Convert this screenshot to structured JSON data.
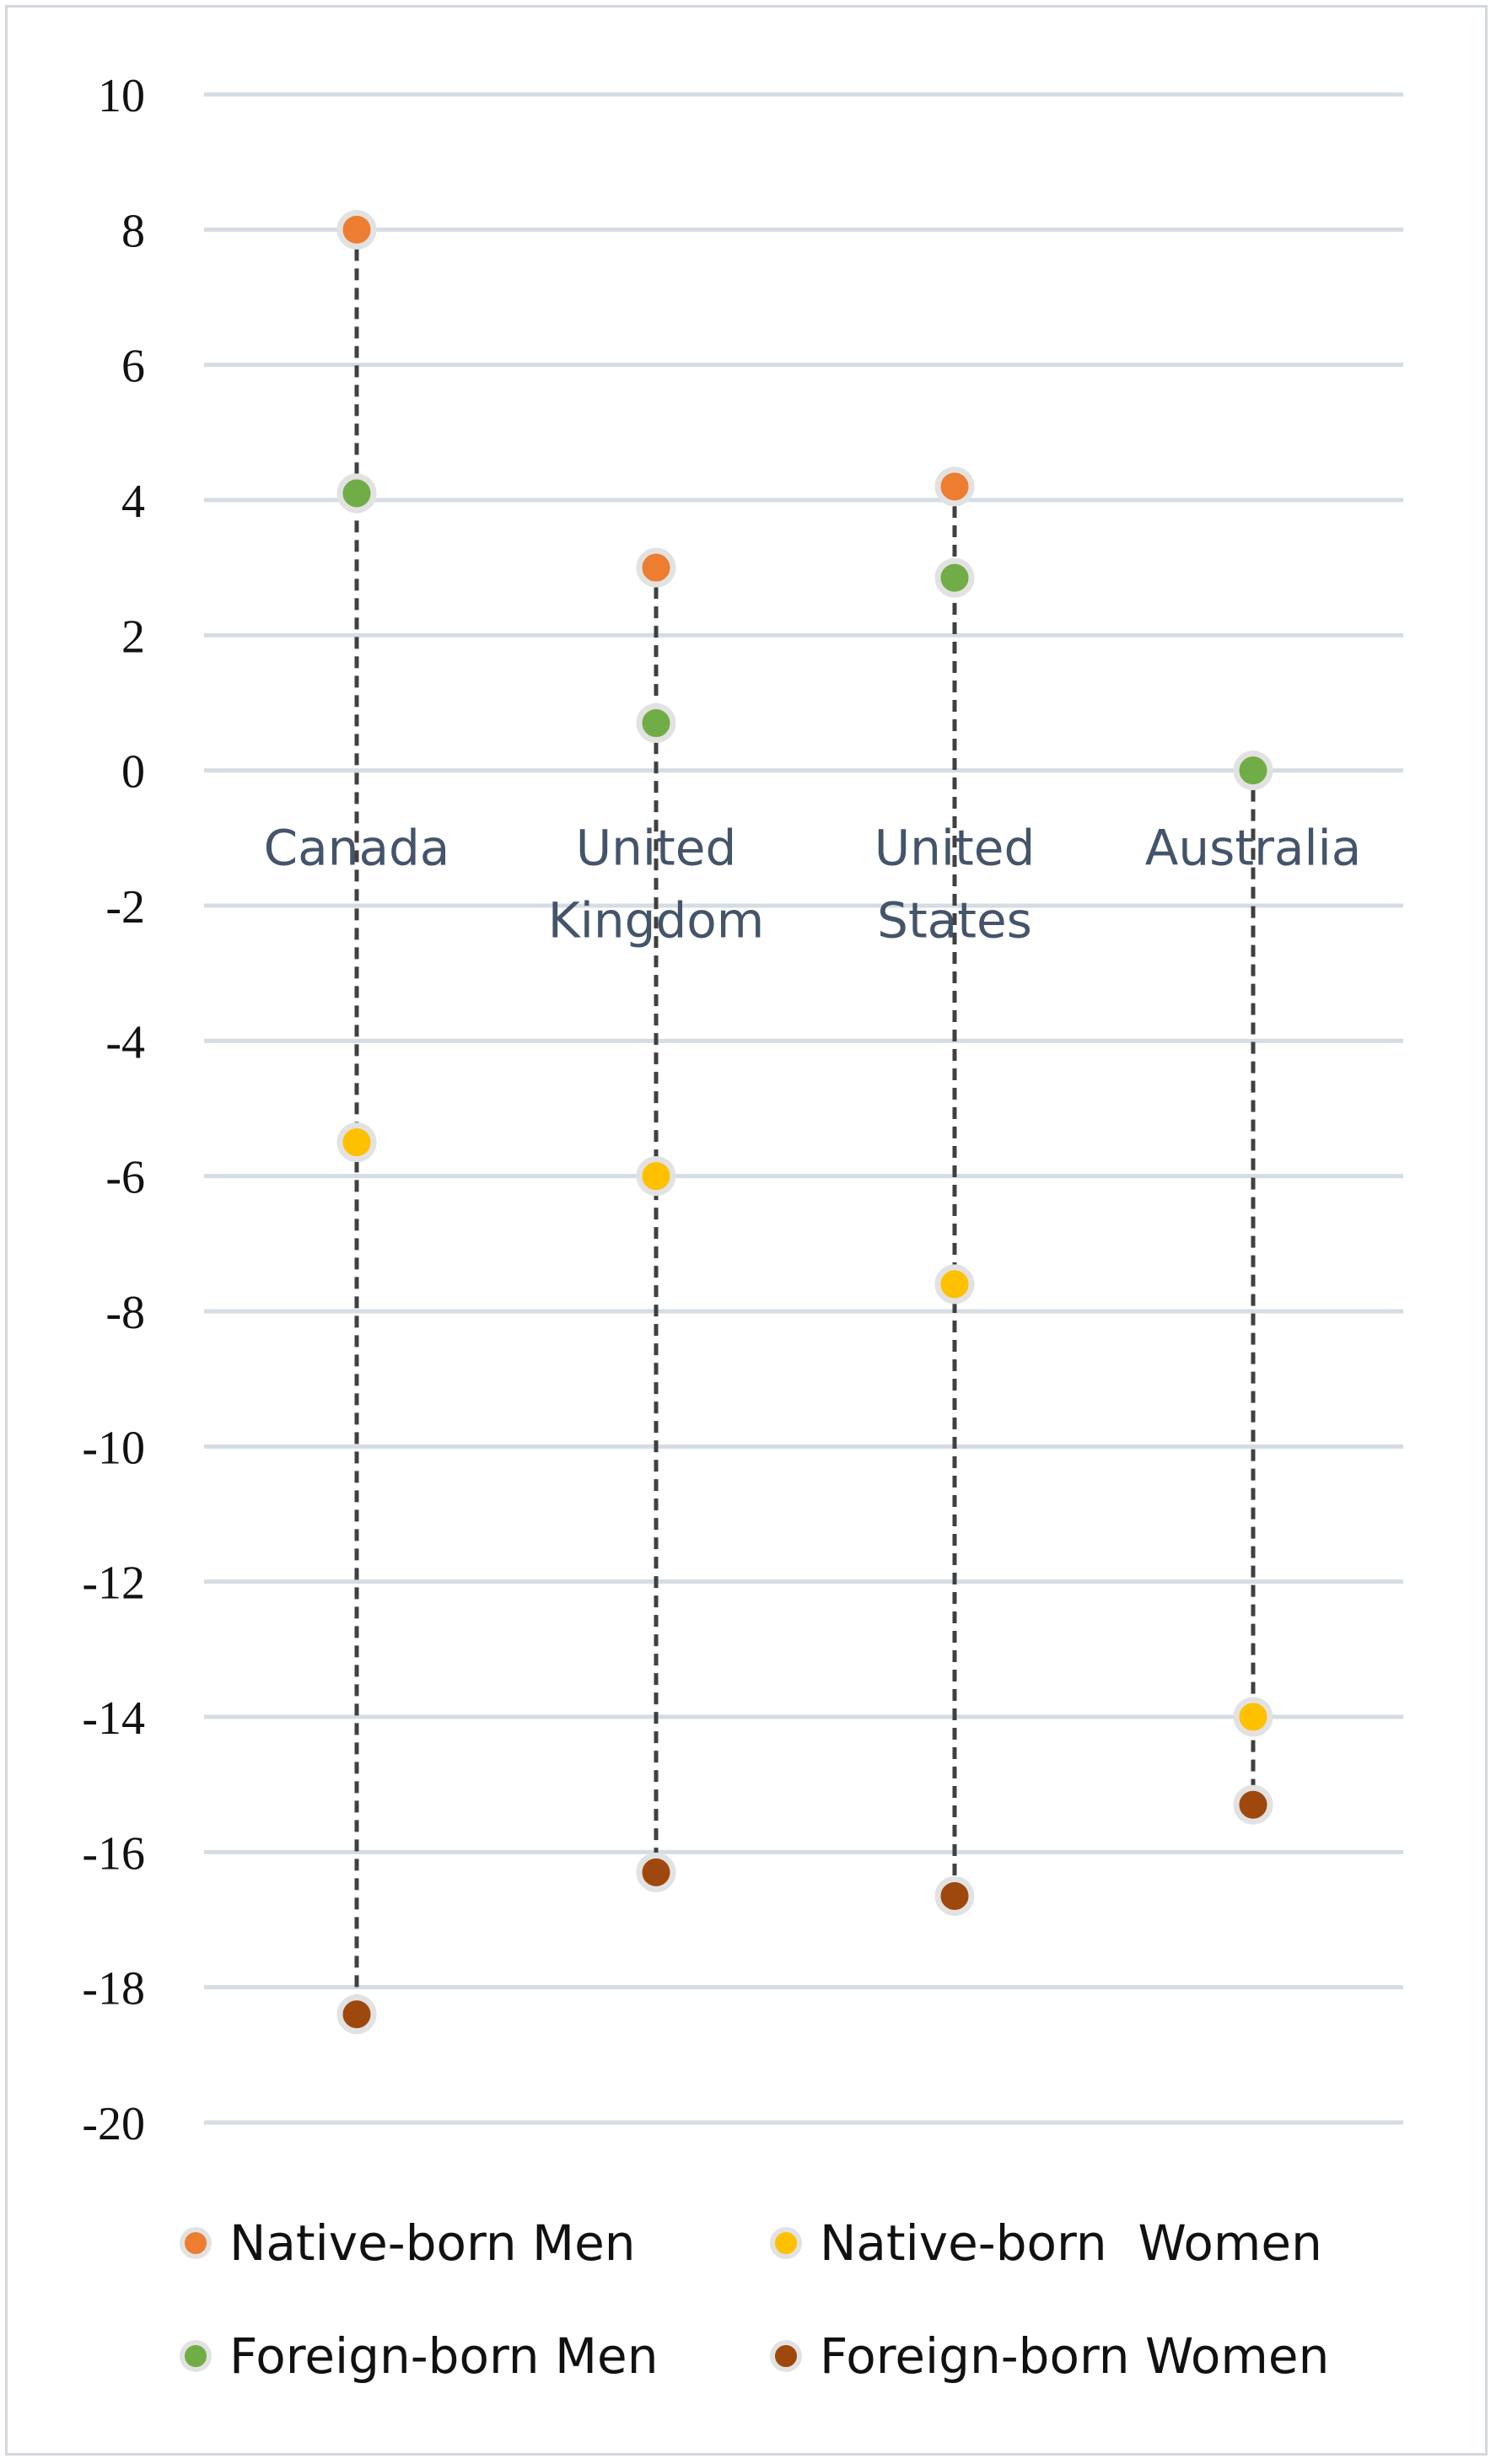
{
  "chart_data": {
    "type": "scatter",
    "title": "",
    "xlabel": "",
    "ylabel": "",
    "ylim": [
      -20,
      10
    ],
    "yticks": [
      10,
      8,
      6,
      4,
      2,
      0,
      -2,
      -4,
      -6,
      -8,
      -10,
      -12,
      -14,
      -16,
      -18,
      -20
    ],
    "grid": true,
    "legend_position": "bottom",
    "categories": [
      {
        "name": "Canada",
        "lines": [
          "Canada"
        ]
      },
      {
        "name": "United Kingdom",
        "lines": [
          "United",
          "Kingdom"
        ]
      },
      {
        "name": "United States",
        "lines": [
          "United",
          "States"
        ]
      },
      {
        "name": "Australia",
        "lines": [
          "Australia"
        ]
      }
    ],
    "series": [
      {
        "name": "Native-born Men",
        "color": "#ed7d31",
        "values": [
          8.0,
          3.0,
          4.2,
          null
        ]
      },
      {
        "name": "Native-born  Women",
        "color": "#ffc000",
        "values": [
          -5.5,
          -6.0,
          -7.6,
          -14.0
        ]
      },
      {
        "name": "Foreign-born Men",
        "color": "#70ad47",
        "values": [
          4.1,
          0.7,
          2.85,
          0.0
        ]
      },
      {
        "name": "Foreign-born Women",
        "color": "#9e480e",
        "values": [
          -18.4,
          -16.3,
          -16.65,
          -15.3
        ]
      }
    ],
    "connector_lines": "dashed, from highest to lowest point per category",
    "colors": {
      "grid": "#d6dce4",
      "connector": "#404040",
      "category_label": "#44546a",
      "marker_halo": "#e2e2e2"
    }
  }
}
